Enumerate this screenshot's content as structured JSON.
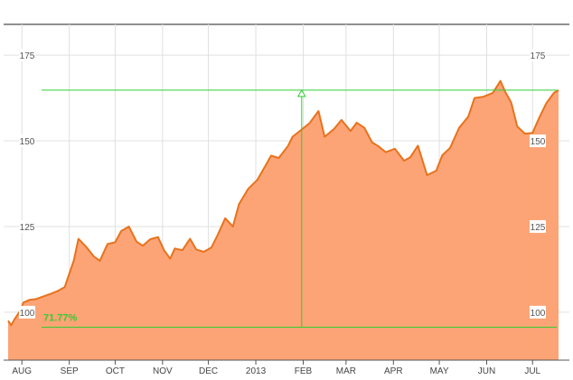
{
  "chart_data": {
    "type": "area",
    "title": "",
    "xlabel": "",
    "ylabel": "",
    "ylim": [
      86,
      184
    ],
    "x_ticks": [
      "AUG",
      "SEP",
      "OCT",
      "NOV",
      "DEC",
      "2013",
      "FEB",
      "MAR",
      "APR",
      "MAY",
      "JUN",
      "JUL"
    ],
    "y_ticks": [
      "100",
      "125",
      "150",
      "175"
    ],
    "grid": true,
    "colors": {
      "line": "#e8721c",
      "fill": "#fca476",
      "marker": "#33cc33",
      "grid": "#e0e0e0"
    },
    "series": [
      {
        "x": [
          "2012-07-23",
          "2012-07-25",
          "2012-07-27",
          "2012-07-31",
          "2012-08-02",
          "2012-08-06",
          "2012-08-10",
          "2012-08-15",
          "2012-08-20",
          "2012-08-24",
          "2012-08-29",
          "2012-09-04",
          "2012-09-07",
          "2012-09-12",
          "2012-09-17",
          "2012-09-21",
          "2012-09-26",
          "2012-10-01",
          "2012-10-05",
          "2012-10-10",
          "2012-10-15",
          "2012-10-19",
          "2012-10-24",
          "2012-10-29",
          "2012-11-02",
          "2012-11-06",
          "2012-11-09",
          "2012-11-14",
          "2012-11-19",
          "2012-11-23",
          "2012-11-28",
          "2012-12-03",
          "2012-12-07",
          "2012-12-12",
          "2012-12-17",
          "2012-12-21",
          "2012-12-27",
          "2013-01-02",
          "2013-01-07",
          "2013-01-11",
          "2013-01-16",
          "2013-01-22",
          "2013-01-25",
          "2013-01-31",
          "2013-02-05",
          "2013-02-11",
          "2013-02-15",
          "2013-02-21",
          "2013-02-26",
          "2013-03-04",
          "2013-03-08",
          "2013-03-13",
          "2013-03-18",
          "2013-03-22",
          "2013-03-27",
          "2013-04-02",
          "2013-04-08",
          "2013-04-12",
          "2013-04-17",
          "2013-04-23",
          "2013-04-29",
          "2013-05-03",
          "2013-05-08",
          "2013-05-14",
          "2013-05-20",
          "2013-05-24",
          "2013-05-30",
          "2013-06-05",
          "2013-06-10",
          "2013-06-13",
          "2013-06-17",
          "2013-06-21",
          "2013-06-26",
          "2013-07-01",
          "2013-07-05",
          "2013-07-10",
          "2013-07-15",
          "2013-07-18"
        ],
        "values": [
          97.5,
          96.2,
          97.8,
          100.5,
          102.8,
          103.6,
          103.8,
          104.6,
          105.4,
          106.1,
          107.3,
          115.1,
          121.4,
          119.1,
          116.3,
          115.0,
          119.9,
          120.4,
          123.7,
          125.0,
          120.6,
          119.4,
          121.3,
          121.9,
          118.1,
          115.6,
          118.6,
          118.1,
          121.4,
          118.3,
          117.6,
          118.9,
          122.5,
          127.4,
          125.0,
          131.5,
          136.0,
          138.6,
          142.5,
          145.7,
          145.0,
          148.5,
          151.2,
          153.3,
          155.1,
          158.7,
          151.2,
          153.4,
          156.1,
          152.9,
          155.3,
          153.8,
          149.6,
          148.5,
          146.7,
          147.7,
          144.2,
          145.2,
          148.6,
          140.0,
          141.3,
          145.8,
          147.9,
          153.8,
          157.1,
          162.5,
          162.9,
          164.0,
          167.5,
          164.4,
          161.2,
          154.2,
          152.1,
          152.3,
          156.4,
          161.0,
          164.0,
          164.8
        ]
      }
    ],
    "annotation": {
      "label": "71.77%",
      "low": 95.6,
      "high": 164.8,
      "marker_date": "2013-01-31"
    }
  }
}
